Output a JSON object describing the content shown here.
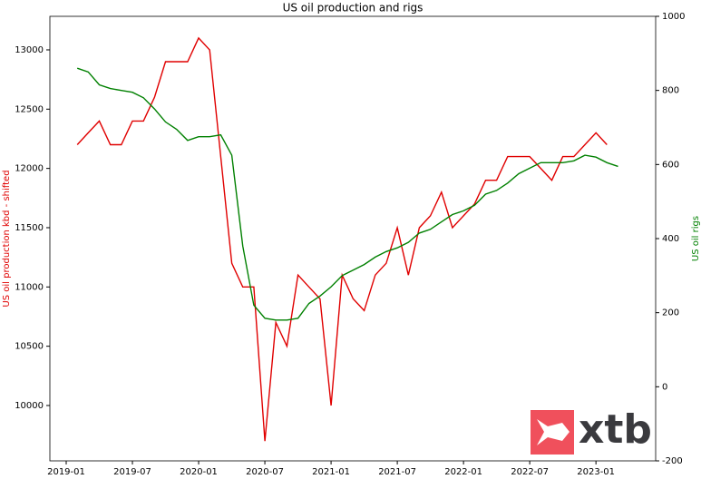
{
  "chart_data": {
    "type": "line",
    "title": "US oil production and rigs",
    "ylabel": "US oil production kbd - shifted",
    "y2label": "US oil rigs",
    "x": [
      "2019-02",
      "2019-03",
      "2019-04",
      "2019-05",
      "2019-06",
      "2019-07",
      "2019-08",
      "2019-09",
      "2019-10",
      "2019-11",
      "2019-12",
      "2020-01",
      "2020-02",
      "2020-03",
      "2020-04",
      "2020-05",
      "2020-06",
      "2020-07",
      "2020-08",
      "2020-09",
      "2020-10",
      "2020-11",
      "2020-12",
      "2021-01",
      "2021-02",
      "2021-03",
      "2021-04",
      "2021-05",
      "2021-06",
      "2021-07",
      "2021-08",
      "2021-09",
      "2021-10",
      "2021-11",
      "2021-12",
      "2022-01",
      "2022-02",
      "2022-03",
      "2022-04",
      "2022-05",
      "2022-06",
      "2022-07",
      "2022-08",
      "2022-09",
      "2022-10",
      "2022-11",
      "2022-12",
      "2023-01",
      "2023-02",
      "2023-03"
    ],
    "series": [
      {
        "name": "US oil production kbd - shifted",
        "color": "#e00000",
        "axis": "y",
        "values": [
          12200,
          12300,
          12400,
          12200,
          12200,
          12400,
          12400,
          12600,
          12900,
          12900,
          12900,
          13100,
          13000,
          12100,
          11200,
          11000,
          11000,
          9700,
          10700,
          10500,
          11100,
          11000,
          10900,
          10000,
          11100,
          10900,
          10800,
          11100,
          11200,
          11500,
          11100,
          11500,
          11600,
          11800,
          11500,
          11600,
          11700,
          11900,
          11900,
          12100,
          12100,
          12100,
          12000,
          11900,
          12100,
          12100,
          12200,
          12300,
          12200,
          null
        ]
      },
      {
        "name": "US oil rigs",
        "color": "#008000",
        "axis": "y2",
        "values": [
          860,
          850,
          815,
          805,
          800,
          795,
          780,
          750,
          715,
          695,
          665,
          675,
          675,
          680,
          625,
          380,
          220,
          185,
          180,
          180,
          185,
          225,
          245,
          270,
          300,
          315,
          330,
          350,
          365,
          375,
          390,
          415,
          425,
          445,
          465,
          475,
          490,
          520,
          530,
          550,
          575,
          590,
          605,
          605,
          605,
          610,
          625,
          620,
          605,
          595
        ]
      }
    ],
    "xticks": [
      "2019-01",
      "2019-07",
      "2020-01",
      "2020-07",
      "2021-01",
      "2021-07",
      "2022-01",
      "2022-07",
      "2023-01"
    ],
    "ylim": [
      9533,
      13283
    ],
    "yticks": [
      10000,
      10500,
      11000,
      11500,
      12000,
      12500,
      13000
    ],
    "y2lim": [
      -200,
      1000
    ],
    "y2ticks": [
      -200,
      0,
      200,
      400,
      600,
      800,
      1000
    ],
    "watermark": "xtb"
  }
}
